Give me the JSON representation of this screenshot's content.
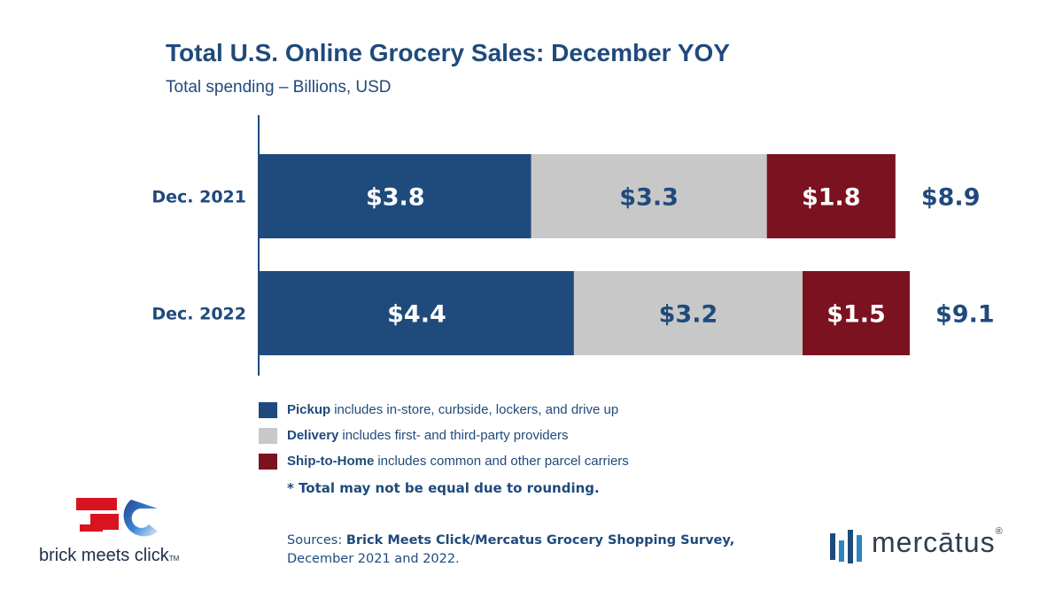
{
  "chart_data": {
    "type": "bar",
    "orientation": "horizontal",
    "stacked": true,
    "title": "Total U.S. Online Grocery Sales: December YOY",
    "subtitle": "Total spending – Billions, USD",
    "categories": [
      "Dec. 2021",
      "Dec. 2022"
    ],
    "series": [
      {
        "name": "Pickup",
        "color": "#1f4a7c",
        "label_color": "#ffffff",
        "values": [
          3.8,
          4.4
        ],
        "labels": [
          "$3.8",
          "$4.4"
        ]
      },
      {
        "name": "Delivery",
        "color": "#c8c8c8",
        "label_color": "#1f4a7c",
        "values": [
          3.3,
          3.2
        ],
        "labels": [
          "$3.3",
          "$3.2"
        ]
      },
      {
        "name": "Ship-to-Home",
        "color": "#7b1220",
        "label_color": "#ffffff",
        "values": [
          1.8,
          1.5
        ],
        "labels": [
          "$1.8",
          "$1.5"
        ]
      }
    ],
    "totals": [
      "$8.9",
      "$9.1"
    ],
    "xlim": [
      0,
      9.1
    ],
    "grid": false,
    "legend_position": "bottom",
    "legend": [
      {
        "name": "Pickup",
        "desc": "includes in-store, curbside, lockers, and drive up",
        "color": "#1f4a7c"
      },
      {
        "name": "Delivery",
        "desc": "includes first- and third-party providers",
        "color": "#c8c8c8"
      },
      {
        "name": "Ship-to-Home",
        "desc": "includes common and other parcel carriers",
        "color": "#7b1220"
      }
    ]
  },
  "note": "* Total may not be equal due to rounding.",
  "sources": {
    "prefix": "Sources: ",
    "bold": "Brick Meets Click/Mercatus Grocery Shopping Survey,",
    "line2": "December 2021 and 2022."
  },
  "logos": {
    "bmc": "brick meets click",
    "bmc_tm": "TM",
    "mercatus": "mercātus",
    "mercatus_reg": "®"
  },
  "colors": {
    "navy": "#1f4a7c",
    "grey": "#c8c8c8",
    "maroon": "#7b1220",
    "red": "#d7141f"
  }
}
